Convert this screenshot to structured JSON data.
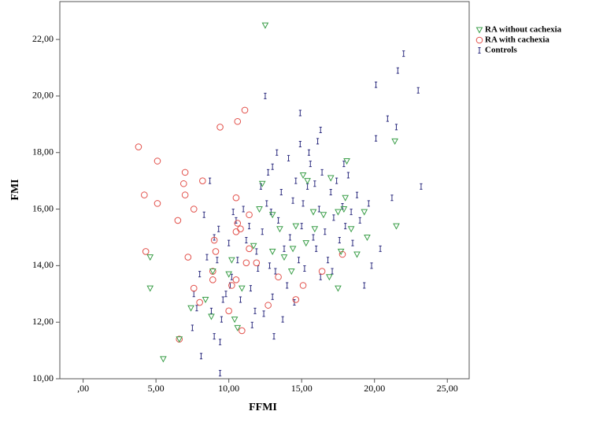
{
  "chart_data": {
    "type": "scatter",
    "x_label": "FFMI",
    "y_label": "FMI",
    "xlim": [
      -1.6,
      26.5
    ],
    "ylim": [
      10,
      23.34
    ],
    "xticks": [
      {
        "value": 0,
        "label": ",00"
      },
      {
        "value": 5,
        "label": "5,00"
      },
      {
        "value": 10,
        "label": "10,00"
      },
      {
        "value": 15,
        "label": "15,00"
      },
      {
        "value": 20,
        "label": "20,00"
      },
      {
        "value": 25,
        "label": "25,00"
      }
    ],
    "yticks": [
      {
        "value": 10,
        "label": "10,00"
      },
      {
        "value": 12,
        "label": "12,00"
      },
      {
        "value": 14,
        "label": "14,00"
      },
      {
        "value": 16,
        "label": "16,00"
      },
      {
        "value": 18,
        "label": "18,00"
      },
      {
        "value": 20,
        "label": "20,00"
      },
      {
        "value": 22,
        "label": "22,00"
      }
    ],
    "legend": "right",
    "series": [
      {
        "name": "RA without cachexia",
        "color": "#3a9e48",
        "marker": "triangle",
        "x": [
          12.5,
          4.6,
          4.6,
          5.5,
          6.6,
          7.4,
          8.4,
          8.8,
          8.9,
          10.0,
          10.4,
          10.6,
          10.9,
          10.2,
          11.7,
          12.1,
          13.0,
          12.3,
          13.5,
          13.0,
          14.3,
          14.4,
          13.8,
          14.6,
          15.1,
          15.4,
          15.8,
          15.9,
          15.3,
          16.5,
          17.0,
          17.5,
          18.0,
          17.9,
          18.1,
          18.4,
          17.7,
          17.5,
          18.8,
          19.3,
          19.5,
          21.4,
          21.5,
          16.9
        ],
        "values": [
          22.5,
          14.3,
          13.2,
          10.7,
          11.4,
          12.5,
          12.8,
          12.2,
          13.8,
          13.7,
          12.1,
          11.8,
          13.2,
          14.2,
          14.7,
          16.0,
          15.8,
          16.9,
          15.3,
          14.5,
          13.8,
          14.6,
          14.3,
          15.4,
          17.2,
          17.0,
          15.9,
          15.3,
          14.8,
          15.8,
          17.1,
          15.9,
          16.4,
          16.0,
          17.7,
          15.3,
          14.5,
          13.2,
          14.4,
          15.9,
          15.0,
          18.4,
          15.4,
          13.6
        ]
      },
      {
        "name": "RA with cachexia",
        "color": "#e2504a",
        "marker": "circle",
        "x": [
          3.8,
          5.1,
          4.2,
          5.1,
          7.0,
          6.9,
          7.0,
          8.2,
          7.6,
          6.5,
          4.3,
          7.2,
          7.6,
          8.0,
          6.6,
          8.9,
          8.9,
          9.0,
          9.1,
          9.4,
          10.6,
          11.1,
          10.5,
          10.6,
          10.8,
          10.5,
          10.0,
          10.2,
          10.5,
          10.9,
          11.2,
          11.4,
          11.4,
          11.9,
          12.7,
          13.4,
          15.1,
          14.6,
          16.4,
          17.8
        ],
        "values": [
          18.2,
          17.7,
          16.5,
          16.2,
          17.3,
          16.9,
          16.5,
          17.0,
          16.0,
          15.6,
          14.5,
          14.3,
          13.2,
          12.7,
          11.4,
          13.5,
          13.8,
          14.9,
          14.5,
          18.9,
          19.1,
          19.5,
          16.4,
          15.5,
          15.3,
          15.2,
          12.4,
          13.3,
          13.5,
          11.7,
          14.1,
          15.8,
          14.6,
          14.1,
          12.6,
          13.6,
          13.3,
          12.8,
          13.8,
          14.4
        ]
      },
      {
        "name": "Controls",
        "color": "#2d2d7f",
        "marker": "ibar",
        "x": [
          23.2,
          22.0,
          21.6,
          20.1,
          21.5,
          20.9,
          23.0,
          21.2,
          20.1,
          20.4,
          12.5,
          9.4,
          8.1,
          7.5,
          9.0,
          9.4,
          7.8,
          14.9,
          16.3,
          8.7,
          13.0,
          9.5,
          9.8,
          10.2,
          9.2,
          10.0,
          10.5,
          11.0,
          11.2,
          11.5,
          11.8,
          12.0,
          12.3,
          12.6,
          12.8,
          13.0,
          13.2,
          13.4,
          13.6,
          13.8,
          14.0,
          14.2,
          14.4,
          14.6,
          14.8,
          15.0,
          15.2,
          15.4,
          15.6,
          15.8,
          16.0,
          16.2,
          16.4,
          16.6,
          16.8,
          17.0,
          17.2,
          17.4,
          17.6,
          17.8,
          18.0,
          18.2,
          18.5,
          18.8,
          19.0,
          19.3,
          19.6,
          10.8,
          11.6,
          12.4,
          13.1,
          12.7,
          14.9,
          15.5,
          16.1,
          13.3,
          12.2,
          10.3,
          9.0,
          8.5,
          8.0,
          7.6,
          8.8,
          9.6,
          10.6,
          11.4,
          12.9,
          14.1,
          15.1,
          16.3,
          17.1,
          18.4,
          19.8,
          14.5,
          13.7,
          11.9,
          10.1,
          8.3,
          9.3,
          15.9,
          17.9
        ],
        "values": [
          16.8,
          21.5,
          20.9,
          20.4,
          18.9,
          19.2,
          20.2,
          16.4,
          18.5,
          14.6,
          20.0,
          10.2,
          10.8,
          11.8,
          11.5,
          11.3,
          12.5,
          19.4,
          18.8,
          17.0,
          17.5,
          12.1,
          13.0,
          13.6,
          14.2,
          14.8,
          15.6,
          16.0,
          14.9,
          13.2,
          12.4,
          13.9,
          15.2,
          16.2,
          14.0,
          12.9,
          13.8,
          15.6,
          16.6,
          14.6,
          13.3,
          15.0,
          16.3,
          17.0,
          14.2,
          15.4,
          13.9,
          16.8,
          17.6,
          15.0,
          14.6,
          16.0,
          17.3,
          15.2,
          14.2,
          16.6,
          15.7,
          17.0,
          14.9,
          16.1,
          15.4,
          17.2,
          14.8,
          16.5,
          15.6,
          13.3,
          16.2,
          12.8,
          11.9,
          12.3,
          11.5,
          17.3,
          18.3,
          18.0,
          18.4,
          18.0,
          16.8,
          15.9,
          15.0,
          14.3,
          13.7,
          13.0,
          12.4,
          12.8,
          14.2,
          15.4,
          15.9,
          17.8,
          16.2,
          13.6,
          13.8,
          15.9,
          14.0,
          12.7,
          12.1,
          14.5,
          13.3,
          15.8,
          15.3,
          16.9,
          17.6
        ]
      }
    ]
  }
}
